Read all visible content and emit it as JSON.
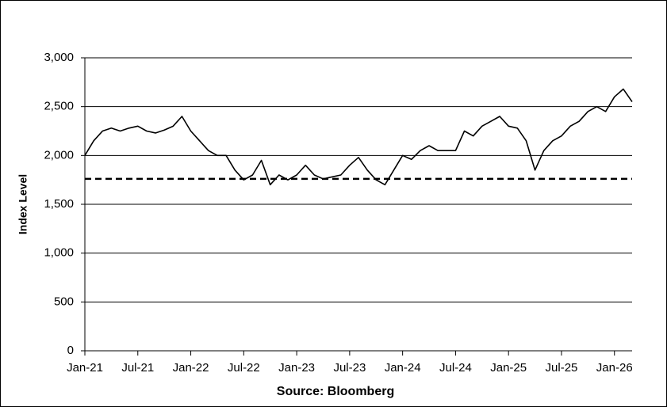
{
  "chart_data": {
    "type": "line",
    "xlabel": "Source: Bloomberg",
    "ylabel": "Index Level",
    "categories": [
      "Jan-21",
      null,
      null,
      null,
      null,
      null,
      "Jul-21",
      null,
      null,
      null,
      null,
      null,
      "Jan-22",
      null,
      null,
      null,
      null,
      null,
      "Jul-22",
      null,
      null,
      null,
      null,
      null,
      "Jan-23",
      null,
      null,
      null,
      null,
      null,
      "Jul-23",
      null,
      null,
      null,
      null,
      null,
      "Jan-24",
      null,
      null,
      null,
      null,
      null,
      "Jul-24",
      null,
      null,
      null,
      null,
      null,
      "Jan-25",
      null,
      null,
      null,
      null,
      null,
      "Jul-25",
      null,
      null,
      null,
      null,
      null,
      "Jan-26",
      null,
      null
    ],
    "series": [
      {
        "color": "#000000",
        "values": [
          2000,
          2150,
          2250,
          2280,
          2250,
          2280,
          2300,
          2250,
          2230,
          2260,
          2300,
          2400,
          2250,
          2150,
          2050,
          2000,
          2000,
          1850,
          1750,
          1800,
          1950,
          1700,
          1800,
          1750,
          1800,
          1900,
          1800,
          1760,
          1780,
          1800,
          1900,
          1980,
          1850,
          1750,
          1700,
          1850,
          2000,
          1960,
          2050,
          2100,
          2050,
          2050,
          2050,
          2250,
          2200,
          2300,
          2350,
          2400,
          2300,
          2280,
          2150,
          1850,
          2050,
          2150,
          2200,
          2300,
          2350,
          2450,
          2500,
          2450,
          2600,
          2680,
          2550
        ]
      }
    ],
    "reference_line": {
      "value": 1760,
      "color": "#000000",
      "style": "dashed"
    },
    "ylim": [
      0,
      3000
    ],
    "yticks": [
      0,
      500,
      {
        "value": 1000,
        "label": "1,000"
      },
      {
        "value": 1500,
        "label": "1,500"
      },
      {
        "value": 2000,
        "label": "2,000"
      },
      {
        "value": 2500,
        "label": "2,500"
      },
      {
        "value": 3000,
        "label": "3,000"
      }
    ],
    "grid": true
  }
}
